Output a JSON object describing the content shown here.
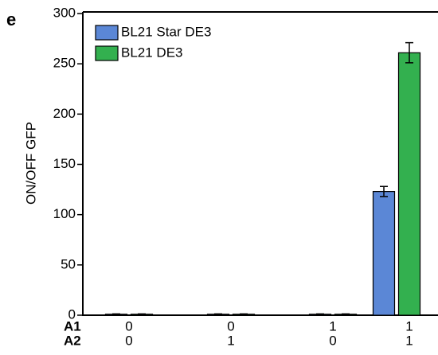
{
  "chart_data": {
    "type": "bar",
    "panel_label": "e",
    "ylabel": "ON/OFF GFP",
    "category_row_labels": [
      "A1",
      "A2"
    ],
    "categories": [
      [
        "0",
        "0"
      ],
      [
        "0",
        "1"
      ],
      [
        "1",
        "0"
      ],
      [
        "1",
        "1"
      ]
    ],
    "series": [
      {
        "name": "BL21 Star DE3",
        "color": "#5b87d6",
        "values": [
          1,
          1,
          1,
          123
        ],
        "errors": [
          0.3,
          0.3,
          0.3,
          5
        ]
      },
      {
        "name": "BL21 DE3",
        "color": "#33b04f",
        "values": [
          1,
          1,
          1,
          261
        ],
        "errors": [
          0.3,
          0.3,
          0.3,
          10
        ]
      }
    ],
    "ylim": [
      0,
      300
    ],
    "yticks": [
      0,
      50,
      100,
      150,
      200,
      250,
      300
    ],
    "legend": "upper left"
  }
}
